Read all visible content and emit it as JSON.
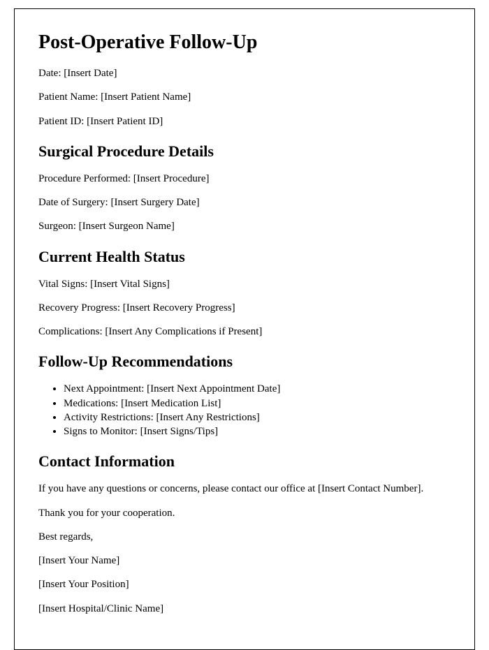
{
  "title": "Post-Operative Follow-Up",
  "patient": {
    "date": "Date: [Insert Date]",
    "name": "Patient Name: [Insert Patient Name]",
    "id": "Patient ID: [Insert Patient ID]"
  },
  "sections": {
    "procedure": {
      "heading": "Surgical Procedure Details",
      "performed": "Procedure Performed: [Insert Procedure]",
      "surgery_date": "Date of Surgery: [Insert Surgery Date]",
      "surgeon": "Surgeon: [Insert Surgeon Name]"
    },
    "health": {
      "heading": "Current Health Status",
      "vitals": "Vital Signs: [Insert Vital Signs]",
      "recovery": "Recovery Progress: [Insert Recovery Progress]",
      "complications": "Complications: [Insert Any Complications if Present]"
    },
    "followup": {
      "heading": "Follow-Up Recommendations",
      "items": {
        "next_appt": "Next Appointment: [Insert Next Appointment Date]",
        "medications": "Medications: [Insert Medication List]",
        "activity": "Activity Restrictions: [Insert Any Restrictions]",
        "signs": "Signs to Monitor: [Insert Signs/Tips]"
      }
    },
    "contact": {
      "heading": "Contact Information",
      "body": "If you have any questions or concerns, please contact our office at [Insert Contact Number].",
      "thanks": "Thank you for your cooperation.",
      "regards": "Best regards,",
      "name": "[Insert Your Name]",
      "position": "[Insert Your Position]",
      "hospital": "[Insert Hospital/Clinic Name]"
    }
  }
}
